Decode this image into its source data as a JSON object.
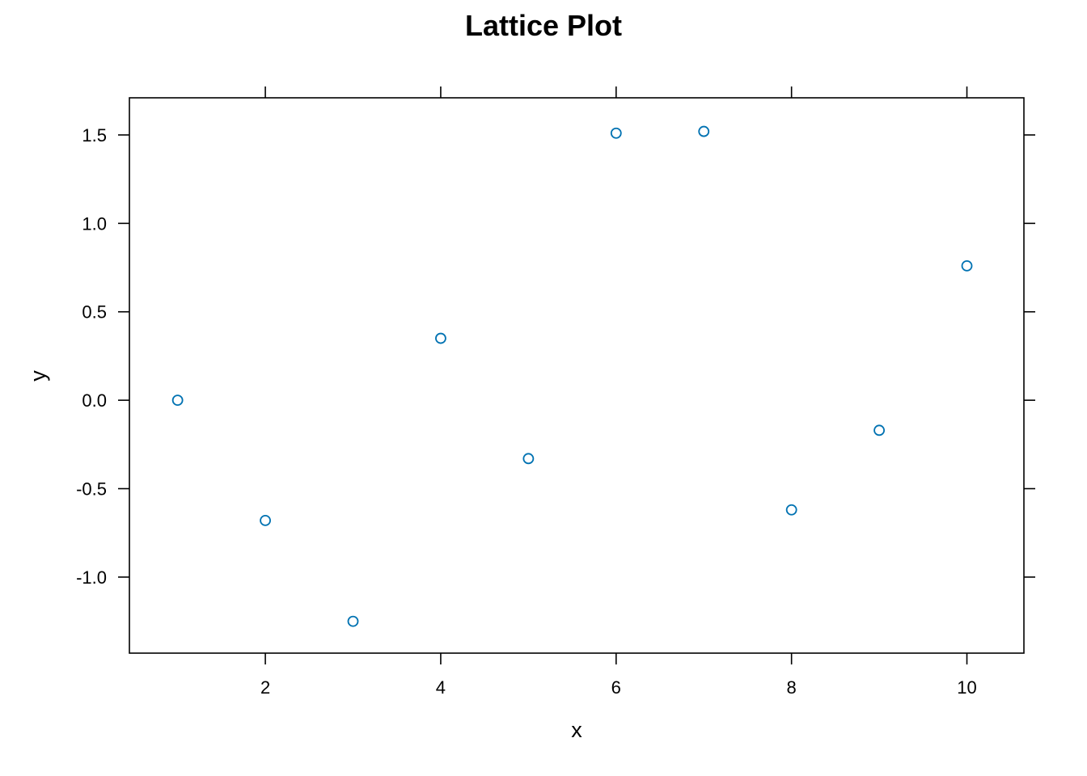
{
  "chart_data": {
    "type": "scatter",
    "title": "Lattice Plot",
    "xlabel": "x",
    "ylabel": "y",
    "xlim": [
      0.45,
      10.65
    ],
    "ylim": [
      -1.43,
      1.71
    ],
    "x_ticks": [
      2,
      4,
      6,
      8,
      10
    ],
    "x_tick_labels": [
      "2",
      "4",
      "6",
      "8",
      "10"
    ],
    "y_ticks": [
      -1.0,
      -0.5,
      0.0,
      0.5,
      1.0,
      1.5
    ],
    "y_tick_labels": [
      "-1.0",
      "-0.5",
      "0.0",
      "0.5",
      "1.0",
      "1.5"
    ],
    "grid": false,
    "point_color": "#0072B2",
    "points": [
      {
        "x": 1,
        "y": 0.0
      },
      {
        "x": 2,
        "y": -0.68
      },
      {
        "x": 3,
        "y": -1.25
      },
      {
        "x": 4,
        "y": 0.35
      },
      {
        "x": 5,
        "y": -0.33
      },
      {
        "x": 6,
        "y": 1.51
      },
      {
        "x": 7,
        "y": 1.52
      },
      {
        "x": 8,
        "y": -0.62
      },
      {
        "x": 9,
        "y": -0.17
      },
      {
        "x": 10,
        "y": 0.76
      }
    ]
  }
}
